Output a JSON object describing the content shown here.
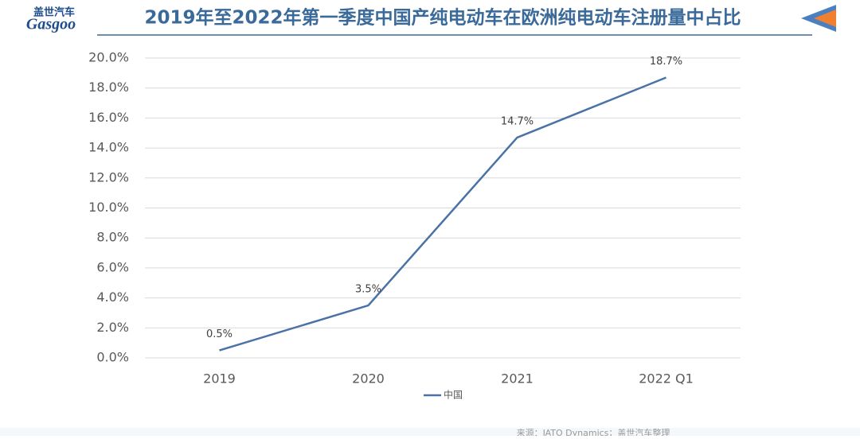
{
  "logo": {
    "name": "盖世汽车",
    "brand": "Gasgoo"
  },
  "source": "来源：JATO Dynamics；盖世汽车整理",
  "chart_data": {
    "type": "line",
    "title": "2019年至2022年第一季度中国产纯电动车在欧洲纯电动车注册量中占比",
    "categories": [
      "2019",
      "2020",
      "2021",
      "2022 Q1"
    ],
    "series": [
      {
        "name": "中国",
        "color": "#4a72a6",
        "values": [
          0.5,
          3.5,
          14.7,
          18.7
        ],
        "value_labels": [
          "0.5%",
          "3.5%",
          "14.7%",
          "18.7%"
        ]
      }
    ],
    "ylim": [
      0,
      20
    ],
    "yticks": [
      {
        "value": 0,
        "label": "0.0%"
      },
      {
        "value": 2,
        "label": "2.0%"
      },
      {
        "value": 4,
        "label": "4.0%"
      },
      {
        "value": 6,
        "label": "6.0%"
      },
      {
        "value": 8,
        "label": "8.0%"
      },
      {
        "value": 10,
        "label": "10.0%"
      },
      {
        "value": 12,
        "label": "12.0%"
      },
      {
        "value": 14,
        "label": "14.0%"
      },
      {
        "value": 16,
        "label": "16.0%"
      },
      {
        "value": 18,
        "label": "18.0%"
      },
      {
        "value": 20,
        "label": "20.0%"
      }
    ],
    "grid": true,
    "legend": "bottom"
  }
}
